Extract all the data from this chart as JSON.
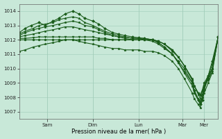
{
  "bg_color": "#c8e8d8",
  "grid_color": "#a0ccb8",
  "line_color": "#1a5c1a",
  "marker_color": "#1a5c1a",
  "xlabel": "Pression niveau de la mer( hPa )",
  "ylim": [
    1006.5,
    1014.5
  ],
  "yticks": [
    1007,
    1008,
    1009,
    1010,
    1011,
    1012,
    1013,
    1014
  ],
  "xtick_labels": [
    "Sam",
    "Dim",
    "Lun",
    "Mar",
    "Mer"
  ],
  "xtick_positions": [
    0.14,
    0.37,
    0.6,
    0.82,
    0.93
  ],
  "xlim": [
    0,
    1.0
  ],
  "series": [
    {
      "points": [
        [
          0,
          1012.5
        ],
        [
          0.03,
          1012.8
        ],
        [
          0.06,
          1013.0
        ],
        [
          0.1,
          1013.2
        ],
        [
          0.13,
          1013.0
        ],
        [
          0.17,
          1013.3
        ],
        [
          0.2,
          1013.5
        ],
        [
          0.23,
          1013.8
        ],
        [
          0.27,
          1014.0
        ],
        [
          0.3,
          1013.8
        ],
        [
          0.33,
          1013.5
        ],
        [
          0.37,
          1013.3
        ],
        [
          0.4,
          1013.1
        ],
        [
          0.43,
          1012.8
        ],
        [
          0.47,
          1012.5
        ],
        [
          0.5,
          1012.4
        ],
        [
          0.53,
          1012.3
        ],
        [
          0.57,
          1012.2
        ],
        [
          0.6,
          1012.15
        ],
        [
          0.63,
          1012.1
        ],
        [
          0.67,
          1012.0
        ],
        [
          0.7,
          1011.8
        ],
        [
          0.73,
          1011.5
        ],
        [
          0.77,
          1011.0
        ],
        [
          0.8,
          1010.5
        ],
        [
          0.83,
          1010.0
        ],
        [
          0.87,
          1009.0
        ],
        [
          0.88,
          1008.5
        ],
        [
          0.9,
          1007.8
        ],
        [
          0.91,
          1007.5
        ],
        [
          0.92,
          1007.8
        ],
        [
          0.93,
          1008.5
        ],
        [
          0.95,
          1009.5
        ],
        [
          0.97,
          1010.5
        ],
        [
          1.0,
          1012.2
        ]
      ],
      "marker": "D",
      "lw": 0.8,
      "ms": 2.0
    },
    {
      "points": [
        [
          0,
          1012.4
        ],
        [
          0.03,
          1012.6
        ],
        [
          0.07,
          1012.8
        ],
        [
          0.1,
          1013.0
        ],
        [
          0.13,
          1013.1
        ],
        [
          0.17,
          1013.2
        ],
        [
          0.2,
          1013.4
        ],
        [
          0.23,
          1013.5
        ],
        [
          0.27,
          1013.6
        ],
        [
          0.3,
          1013.5
        ],
        [
          0.33,
          1013.2
        ],
        [
          0.37,
          1013.0
        ],
        [
          0.4,
          1012.8
        ],
        [
          0.43,
          1012.6
        ],
        [
          0.47,
          1012.4
        ],
        [
          0.5,
          1012.3
        ],
        [
          0.53,
          1012.2
        ],
        [
          0.57,
          1012.1
        ],
        [
          0.6,
          1012.1
        ],
        [
          0.63,
          1012.0
        ],
        [
          0.67,
          1012.0
        ],
        [
          0.7,
          1011.8
        ],
        [
          0.73,
          1011.5
        ],
        [
          0.77,
          1011.0
        ],
        [
          0.8,
          1010.4
        ],
        [
          0.83,
          1009.8
        ],
        [
          0.87,
          1009.0
        ],
        [
          0.88,
          1008.5
        ],
        [
          0.9,
          1007.9
        ],
        [
          0.91,
          1007.7
        ],
        [
          0.92,
          1008.0
        ],
        [
          0.93,
          1008.8
        ],
        [
          0.95,
          1009.5
        ],
        [
          0.97,
          1010.3
        ],
        [
          1.0,
          1012.2
        ]
      ],
      "marker": "^",
      "lw": 0.8,
      "ms": 2.0
    },
    {
      "points": [
        [
          0,
          1012.2
        ],
        [
          0.03,
          1012.3
        ],
        [
          0.07,
          1012.4
        ],
        [
          0.1,
          1012.5
        ],
        [
          0.13,
          1012.6
        ],
        [
          0.17,
          1012.7
        ],
        [
          0.2,
          1012.8
        ],
        [
          0.23,
          1012.9
        ],
        [
          0.27,
          1012.9
        ],
        [
          0.3,
          1012.8
        ],
        [
          0.33,
          1012.7
        ],
        [
          0.37,
          1012.6
        ],
        [
          0.4,
          1012.5
        ],
        [
          0.43,
          1012.4
        ],
        [
          0.47,
          1012.3
        ],
        [
          0.5,
          1012.2
        ],
        [
          0.53,
          1012.2
        ],
        [
          0.57,
          1012.1
        ],
        [
          0.6,
          1012.1
        ],
        [
          0.63,
          1012.1
        ],
        [
          0.67,
          1012.0
        ],
        [
          0.7,
          1011.9
        ],
        [
          0.73,
          1011.7
        ],
        [
          0.77,
          1011.2
        ],
        [
          0.8,
          1010.8
        ],
        [
          0.83,
          1010.2
        ],
        [
          0.87,
          1009.3
        ],
        [
          0.88,
          1008.8
        ],
        [
          0.9,
          1008.2
        ],
        [
          0.91,
          1007.9
        ],
        [
          0.92,
          1008.2
        ],
        [
          0.93,
          1008.8
        ],
        [
          0.95,
          1009.3
        ],
        [
          0.97,
          1010.0
        ],
        [
          1.0,
          1012.2
        ]
      ],
      "marker": "s",
      "lw": 0.8,
      "ms": 2.0
    },
    {
      "points": [
        [
          0,
          1012.1
        ],
        [
          0.03,
          1012.1
        ],
        [
          0.07,
          1012.15
        ],
        [
          0.1,
          1012.2
        ],
        [
          0.13,
          1012.2
        ],
        [
          0.17,
          1012.2
        ],
        [
          0.2,
          1012.2
        ],
        [
          0.23,
          1012.2
        ],
        [
          0.27,
          1012.2
        ],
        [
          0.3,
          1012.2
        ],
        [
          0.33,
          1012.2
        ],
        [
          0.37,
          1012.2
        ],
        [
          0.4,
          1012.1
        ],
        [
          0.43,
          1012.1
        ],
        [
          0.47,
          1012.0
        ],
        [
          0.5,
          1012.0
        ],
        [
          0.53,
          1012.0
        ],
        [
          0.57,
          1012.0
        ],
        [
          0.6,
          1012.0
        ],
        [
          0.63,
          1012.0
        ],
        [
          0.67,
          1012.0
        ],
        [
          0.7,
          1011.9
        ],
        [
          0.73,
          1011.7
        ],
        [
          0.77,
          1011.3
        ],
        [
          0.8,
          1010.8
        ],
        [
          0.83,
          1010.2
        ],
        [
          0.87,
          1009.2
        ],
        [
          0.88,
          1008.8
        ],
        [
          0.9,
          1008.3
        ],
        [
          0.91,
          1008.1
        ],
        [
          0.92,
          1008.4
        ],
        [
          0.93,
          1008.8
        ],
        [
          0.95,
          1009.2
        ],
        [
          0.97,
          1009.8
        ],
        [
          1.0,
          1012.2
        ]
      ],
      "marker": "v",
      "lw": 0.8,
      "ms": 2.0
    },
    {
      "points": [
        [
          0,
          1012.0
        ],
        [
          0.03,
          1012.0
        ],
        [
          0.07,
          1012.0
        ],
        [
          0.1,
          1012.0
        ],
        [
          0.13,
          1012.0
        ],
        [
          0.17,
          1012.0
        ],
        [
          0.2,
          1012.0
        ],
        [
          0.23,
          1012.0
        ],
        [
          0.27,
          1012.0
        ],
        [
          0.3,
          1012.0
        ],
        [
          0.33,
          1012.0
        ],
        [
          0.37,
          1012.0
        ],
        [
          0.4,
          1012.0
        ],
        [
          0.43,
          1012.0
        ],
        [
          0.47,
          1012.0
        ],
        [
          0.5,
          1012.0
        ],
        [
          0.53,
          1012.0
        ],
        [
          0.57,
          1012.0
        ],
        [
          0.6,
          1012.0
        ],
        [
          0.63,
          1012.0
        ],
        [
          0.67,
          1012.0
        ],
        [
          0.7,
          1011.9
        ],
        [
          0.73,
          1011.7
        ],
        [
          0.77,
          1011.3
        ],
        [
          0.8,
          1010.8
        ],
        [
          0.83,
          1010.2
        ],
        [
          0.87,
          1009.2
        ],
        [
          0.88,
          1008.8
        ],
        [
          0.9,
          1008.3
        ],
        [
          0.91,
          1008.2
        ],
        [
          0.92,
          1008.5
        ],
        [
          0.93,
          1009.0
        ],
        [
          0.95,
          1009.5
        ],
        [
          0.97,
          1010.0
        ],
        [
          1.0,
          1012.2
        ]
      ],
      "marker": "o",
      "lw": 0.8,
      "ms": 2.0
    },
    {
      "points": [
        [
          0,
          1012.3
        ],
        [
          0.03,
          1012.5
        ],
        [
          0.07,
          1012.7
        ],
        [
          0.1,
          1012.8
        ],
        [
          0.13,
          1012.9
        ],
        [
          0.17,
          1013.0
        ],
        [
          0.2,
          1013.1
        ],
        [
          0.23,
          1013.2
        ],
        [
          0.27,
          1013.3
        ],
        [
          0.3,
          1013.2
        ],
        [
          0.33,
          1013.0
        ],
        [
          0.37,
          1012.9
        ],
        [
          0.4,
          1012.7
        ],
        [
          0.43,
          1012.5
        ],
        [
          0.47,
          1012.3
        ],
        [
          0.5,
          1012.2
        ],
        [
          0.53,
          1012.1
        ],
        [
          0.57,
          1012.0
        ],
        [
          0.6,
          1012.0
        ],
        [
          0.63,
          1012.0
        ],
        [
          0.67,
          1011.9
        ],
        [
          0.7,
          1011.7
        ],
        [
          0.73,
          1011.4
        ],
        [
          0.77,
          1011.0
        ],
        [
          0.8,
          1010.4
        ],
        [
          0.83,
          1009.7
        ],
        [
          0.87,
          1008.8
        ],
        [
          0.88,
          1008.3
        ],
        [
          0.9,
          1007.8
        ],
        [
          0.91,
          1007.6
        ],
        [
          0.92,
          1008.0
        ],
        [
          0.93,
          1008.6
        ],
        [
          0.95,
          1009.3
        ],
        [
          0.97,
          1010.0
        ],
        [
          1.0,
          1012.2
        ]
      ],
      "marker": "p",
      "lw": 0.8,
      "ms": 2.0
    },
    {
      "points": [
        [
          0,
          1011.2
        ],
        [
          0.03,
          1011.3
        ],
        [
          0.07,
          1011.5
        ],
        [
          0.1,
          1011.6
        ],
        [
          0.13,
          1011.7
        ],
        [
          0.17,
          1011.8
        ],
        [
          0.2,
          1011.9
        ],
        [
          0.23,
          1012.0
        ],
        [
          0.27,
          1012.0
        ],
        [
          0.3,
          1011.9
        ],
        [
          0.33,
          1011.8
        ],
        [
          0.37,
          1011.7
        ],
        [
          0.4,
          1011.6
        ],
        [
          0.43,
          1011.5
        ],
        [
          0.47,
          1011.4
        ],
        [
          0.5,
          1011.4
        ],
        [
          0.53,
          1011.3
        ],
        [
          0.57,
          1011.3
        ],
        [
          0.6,
          1011.3
        ],
        [
          0.63,
          1011.2
        ],
        [
          0.67,
          1011.2
        ],
        [
          0.7,
          1011.1
        ],
        [
          0.73,
          1010.9
        ],
        [
          0.77,
          1010.5
        ],
        [
          0.8,
          1010.0
        ],
        [
          0.83,
          1009.3
        ],
        [
          0.87,
          1008.3
        ],
        [
          0.88,
          1007.9
        ],
        [
          0.9,
          1007.5
        ],
        [
          0.91,
          1007.3
        ],
        [
          0.92,
          1007.8
        ],
        [
          0.93,
          1008.3
        ],
        [
          0.95,
          1009.0
        ],
        [
          0.97,
          1009.7
        ],
        [
          1.0,
          1012.2
        ]
      ],
      "marker": "*",
      "lw": 0.8,
      "ms": 2.5
    }
  ]
}
